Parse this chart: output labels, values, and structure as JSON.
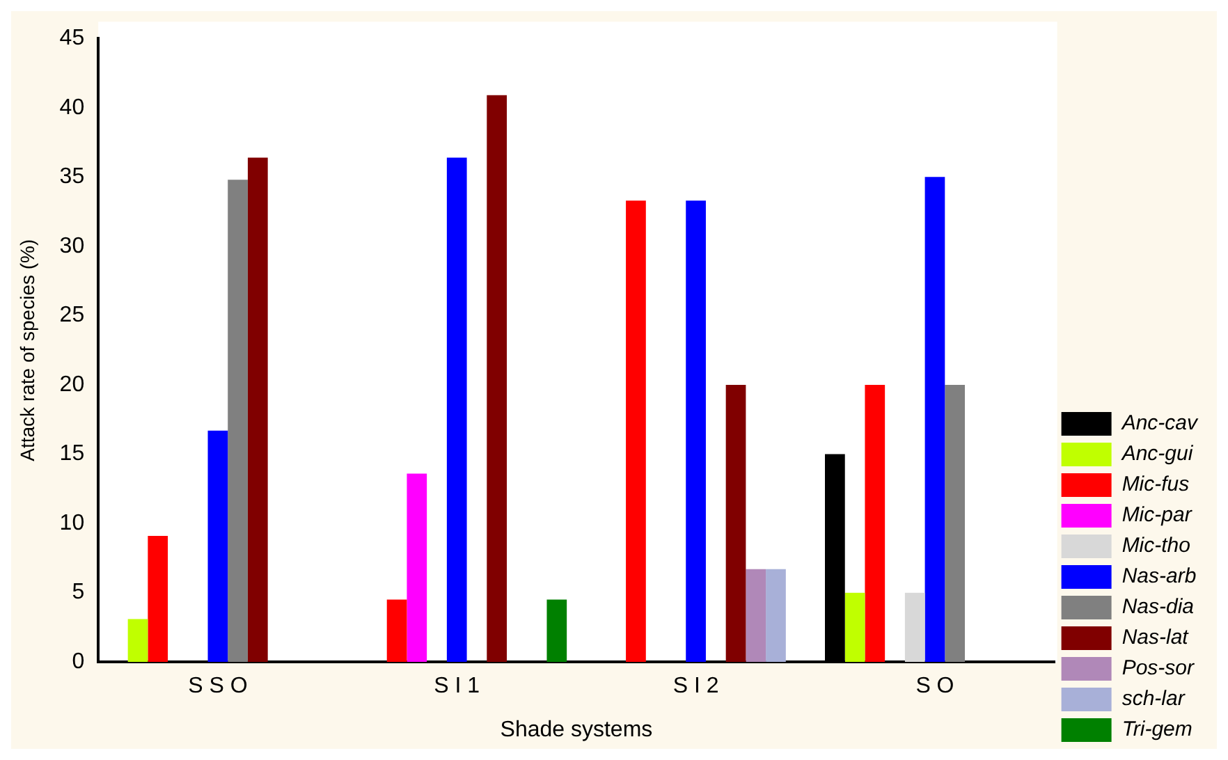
{
  "chart_data": {
    "type": "bar",
    "xlabel": "Shade systems",
    "ylabel": "Attack rate of species (%)",
    "categories": [
      "S S O",
      "S I 1",
      "S I 2",
      "S O"
    ],
    "series": [
      {
        "name": "Anc-cav",
        "color": "#000000",
        "values": [
          0,
          0,
          0,
          15
        ]
      },
      {
        "name": "Anc-gui",
        "color": "#c0ff00",
        "values": [
          3.1,
          0,
          0,
          5
        ]
      },
      {
        "name": "Mic-fus",
        "color": "#ff0000",
        "values": [
          9.1,
          4.5,
          33.3,
          20
        ]
      },
      {
        "name": "Mic-par",
        "color": "#ff00ff",
        "values": [
          0,
          13.6,
          0,
          0
        ]
      },
      {
        "name": "Mic-tho",
        "color": "#d8d8d8",
        "values": [
          0,
          0,
          0,
          5
        ]
      },
      {
        "name": "Nas-arb",
        "color": "#0000ff",
        "values": [
          16.7,
          36.4,
          33.3,
          35
        ]
      },
      {
        "name": "Nas-dia",
        "color": "#808080",
        "values": [
          34.8,
          0,
          0,
          20
        ]
      },
      {
        "name": "Nas-lat",
        "color": "#800000",
        "values": [
          36.4,
          40.9,
          20,
          0
        ]
      },
      {
        "name": "Pos-sor",
        "color": "#b088b8",
        "values": [
          0,
          0,
          6.7,
          0
        ]
      },
      {
        "name": "sch-lar",
        "color": "#a8b0d8",
        "values": [
          0,
          0,
          6.7,
          0
        ]
      },
      {
        "name": "Tri-gem",
        "color": "#008000",
        "values": [
          0,
          4.5,
          0,
          0
        ]
      }
    ],
    "ylim": [
      0,
      45
    ],
    "yticks": [
      0,
      5,
      10,
      15,
      20,
      25,
      30,
      35,
      40,
      45
    ],
    "grid": false,
    "legend": "bottom right"
  }
}
